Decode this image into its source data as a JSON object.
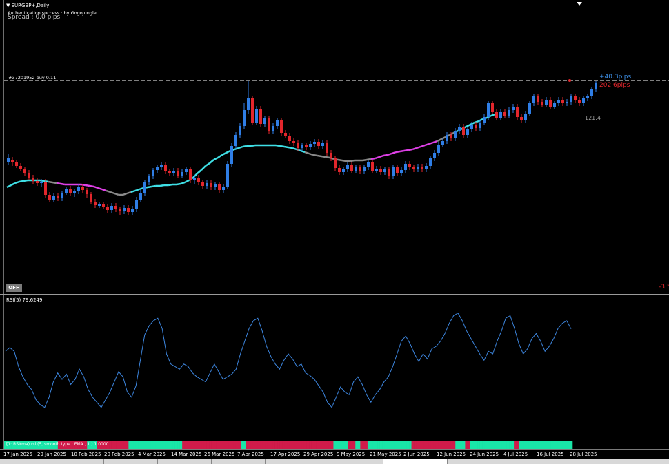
{
  "header": {
    "symbol_title": "▼ EURGBP+,Daily",
    "auth_text": "Authentication success : by GogoJungle",
    "spread_text": "Spread : 0.0 pips"
  },
  "order": {
    "label": "#37201952 buy 0.11",
    "pips_blue": "+40.3pips",
    "pips_red": "202.6pips"
  },
  "ma_value": "121.4",
  "off_button": "OFF",
  "right_edge_value": "-3.5",
  "rsi": {
    "label": "RSI(5) 79.6249"
  },
  "bar_indicator": {
    "label": "[1: RSI(ma) rsi (5, smooth type : EMA , 1 ) 1.0000"
  },
  "date_axis": [
    "17 Jan 2025",
    "29 Jan 2025",
    "10 Feb 2025",
    "20 Feb 2025",
    "4 Mar 2025",
    "14 Mar 2025",
    "26 Mar 2025",
    "7 Apr 2025",
    "17 Apr 2025",
    "29 Apr 2025",
    "9 May 2025",
    "21 May 2025",
    "2 Jun 2025",
    "12 Jun 2025",
    "24 Jun 2025",
    "4 Jul 2025",
    "16 Jul 2025",
    "28 Jul 2025"
  ],
  "colors": {
    "bull": "#2f7ee6",
    "bear": "#e3262c",
    "ma_cyan": "#3fe0e6",
    "ma_magenta": "#e040e8",
    "ma_gray": "#8a8a8a",
    "rsi_line": "#3d86df",
    "bar_green": "#19e6a8",
    "bar_red": "#d01b4a"
  },
  "chart_data": {
    "type": "candlestick",
    "candles": [
      [
        235,
        230,
        224,
        240
      ],
      [
        232,
        236,
        228,
        241
      ],
      [
        236,
        241,
        232,
        244
      ],
      [
        241,
        245,
        237,
        249
      ],
      [
        245,
        251,
        242,
        255
      ],
      [
        251,
        258,
        247,
        262
      ],
      [
        258,
        263,
        254,
        268
      ],
      [
        263,
        266,
        259,
        270
      ],
      [
        266,
        264,
        260,
        271
      ],
      [
        264,
        283,
        260,
        287
      ],
      [
        283,
        290,
        279,
        294
      ],
      [
        290,
        285,
        281,
        294
      ],
      [
        285,
        288,
        281,
        292
      ],
      [
        288,
        280,
        277,
        292
      ],
      [
        280,
        274,
        271,
        283
      ],
      [
        274,
        281,
        270,
        285
      ],
      [
        281,
        278,
        274,
        286
      ],
      [
        278,
        272,
        268,
        282
      ],
      [
        272,
        276,
        268,
        280
      ],
      [
        276,
        282,
        273,
        287
      ],
      [
        282,
        293,
        279,
        297
      ],
      [
        293,
        298,
        289,
        302
      ],
      [
        298,
        297,
        293,
        302
      ],
      [
        297,
        300,
        293,
        304
      ],
      [
        300,
        305,
        296,
        310
      ],
      [
        305,
        299,
        295,
        309
      ],
      [
        299,
        304,
        295,
        308
      ],
      [
        304,
        307,
        300,
        312
      ],
      [
        307,
        302,
        298,
        311
      ],
      [
        302,
        308,
        298,
        312
      ],
      [
        308,
        303,
        299,
        312
      ],
      [
        303,
        290,
        286,
        308
      ],
      [
        290,
        280,
        276,
        294
      ],
      [
        280,
        265,
        261,
        284
      ],
      [
        265,
        256,
        253,
        269
      ],
      [
        256,
        247,
        244,
        260
      ],
      [
        247,
        243,
        239,
        252
      ],
      [
        243,
        240,
        236,
        247
      ],
      [
        240,
        249,
        236,
        253
      ],
      [
        249,
        252,
        245,
        256
      ],
      [
        252,
        248,
        244,
        256
      ],
      [
        248,
        255,
        244,
        259
      ],
      [
        255,
        250,
        246,
        259
      ],
      [
        250,
        246,
        242,
        254
      ],
      [
        246,
        262,
        242,
        266
      ],
      [
        262,
        258,
        254,
        267
      ],
      [
        258,
        265,
        254,
        269
      ],
      [
        265,
        270,
        261,
        274
      ],
      [
        270,
        266,
        262,
        274
      ],
      [
        266,
        272,
        262,
        276
      ],
      [
        272,
        268,
        264,
        276
      ],
      [
        268,
        276,
        264,
        281
      ],
      [
        276,
        271,
        267,
        280
      ],
      [
        271,
        238,
        234,
        275
      ],
      [
        238,
        212,
        208,
        242
      ],
      [
        212,
        196,
        192,
        216
      ],
      [
        196,
        183,
        178,
        200
      ],
      [
        183,
        160,
        150,
        187
      ],
      [
        160,
        143,
        118,
        165
      ],
      [
        143,
        178,
        139,
        182
      ],
      [
        178,
        158,
        154,
        182
      ],
      [
        158,
        180,
        154,
        184
      ],
      [
        180,
        172,
        168,
        184
      ],
      [
        172,
        190,
        168,
        194
      ],
      [
        190,
        183,
        179,
        194
      ],
      [
        183,
        175,
        171,
        187
      ],
      [
        175,
        193,
        171,
        197
      ],
      [
        193,
        197,
        189,
        201
      ],
      [
        197,
        205,
        193,
        209
      ],
      [
        205,
        208,
        201,
        212
      ],
      [
        208,
        215,
        204,
        219
      ],
      [
        215,
        211,
        207,
        219
      ],
      [
        211,
        214,
        207,
        218
      ],
      [
        214,
        209,
        205,
        218
      ],
      [
        209,
        206,
        202,
        213
      ],
      [
        206,
        212,
        202,
        216
      ],
      [
        212,
        208,
        204,
        216
      ],
      [
        208,
        222,
        204,
        226
      ],
      [
        222,
        230,
        218,
        234
      ],
      [
        230,
        244,
        226,
        248
      ],
      [
        244,
        250,
        240,
        254
      ],
      [
        250,
        246,
        242,
        254
      ],
      [
        246,
        240,
        236,
        250
      ],
      [
        240,
        248,
        236,
        252
      ],
      [
        248,
        243,
        239,
        252
      ],
      [
        243,
        249,
        239,
        253
      ],
      [
        249,
        243,
        239,
        253
      ],
      [
        243,
        236,
        232,
        247
      ],
      [
        236,
        248,
        232,
        252
      ],
      [
        248,
        245,
        241,
        252
      ],
      [
        245,
        250,
        241,
        254
      ],
      [
        250,
        246,
        242,
        254
      ],
      [
        246,
        256,
        242,
        260
      ],
      [
        256,
        243,
        239,
        260
      ],
      [
        243,
        252,
        239,
        256
      ],
      [
        252,
        247,
        243,
        256
      ],
      [
        247,
        238,
        234,
        251
      ],
      [
        238,
        243,
        234,
        247
      ],
      [
        243,
        246,
        239,
        250
      ],
      [
        246,
        242,
        238,
        250
      ],
      [
        242,
        246,
        238,
        250
      ],
      [
        246,
        241,
        237,
        250
      ],
      [
        241,
        230,
        226,
        245
      ],
      [
        230,
        222,
        218,
        234
      ],
      [
        222,
        210,
        206,
        226
      ],
      [
        210,
        205,
        201,
        214
      ],
      [
        205,
        196,
        192,
        209
      ],
      [
        196,
        201,
        192,
        205
      ],
      [
        201,
        190,
        186,
        205
      ],
      [
        190,
        184,
        180,
        194
      ],
      [
        184,
        196,
        180,
        200
      ],
      [
        196,
        188,
        184,
        200
      ],
      [
        188,
        181,
        177,
        192
      ],
      [
        181,
        186,
        177,
        190
      ],
      [
        186,
        178,
        174,
        190
      ],
      [
        178,
        170,
        166,
        182
      ],
      [
        170,
        150,
        146,
        174
      ],
      [
        150,
        162,
        146,
        166
      ],
      [
        162,
        171,
        158,
        175
      ],
      [
        171,
        163,
        159,
        175
      ],
      [
        163,
        168,
        159,
        172
      ],
      [
        168,
        160,
        156,
        172
      ],
      [
        160,
        155,
        151,
        164
      ],
      [
        155,
        170,
        151,
        174
      ],
      [
        170,
        175,
        166,
        179
      ],
      [
        175,
        165,
        161,
        179
      ],
      [
        165,
        150,
        146,
        169
      ],
      [
        150,
        140,
        136,
        154
      ],
      [
        140,
        148,
        136,
        152
      ],
      [
        148,
        152,
        144,
        156
      ],
      [
        152,
        145,
        141,
        156
      ],
      [
        145,
        155,
        141,
        159
      ],
      [
        155,
        150,
        146,
        159
      ],
      [
        150,
        145,
        141,
        154
      ],
      [
        145,
        150,
        141,
        154
      ],
      [
        150,
        148,
        144,
        154
      ],
      [
        148,
        140,
        136,
        152
      ],
      [
        140,
        145,
        136,
        149
      ],
      [
        145,
        150,
        141,
        154
      ],
      [
        150,
        143,
        139,
        154
      ],
      [
        143,
        140,
        136,
        147
      ],
      [
        140,
        130,
        126,
        144
      ],
      [
        130,
        121,
        117,
        134
      ]
    ],
    "ma": [
      272,
      269,
      266,
      264,
      263,
      262,
      262,
      262,
      262,
      263,
      264,
      265,
      266,
      267,
      268,
      268,
      268,
      268,
      268,
      269,
      270,
      271,
      273,
      275,
      277,
      279,
      281,
      283,
      283,
      281,
      279,
      277,
      275,
      273,
      272,
      271,
      270,
      270,
      269,
      269,
      268,
      268,
      267,
      265,
      262,
      258,
      252,
      247,
      241,
      237,
      232,
      229,
      225,
      222,
      219,
      217,
      215,
      213,
      212,
      212,
      211,
      211,
      211,
      211,
      211,
      211,
      212,
      213,
      214,
      215,
      217,
      219,
      221,
      223,
      225,
      226,
      227,
      228,
      229,
      231,
      232,
      233,
      234,
      234,
      233,
      233,
      233,
      232,
      231,
      230,
      228,
      226,
      225,
      223,
      221,
      220,
      219,
      218,
      217,
      215,
      213,
      211,
      209,
      207,
      205,
      202,
      199,
      196,
      193,
      190,
      187,
      184,
      181,
      178,
      176,
      173,
      171,
      168,
      166
    ],
    "ma_magenta_ranges": [
      [
        12,
        24
      ],
      [
        88,
        104
      ]
    ],
    "rsi": [
      62,
      65,
      62,
      50,
      42,
      36,
      32,
      24,
      20,
      18,
      26,
      38,
      45,
      40,
      44,
      36,
      40,
      48,
      42,
      32,
      26,
      22,
      18,
      24,
      30,
      38,
      46,
      42,
      30,
      26,
      35,
      55,
      75,
      82,
      86,
      88,
      80,
      60,
      52,
      50,
      48,
      52,
      50,
      45,
      42,
      40,
      38,
      45,
      52,
      46,
      40,
      42,
      44,
      48,
      60,
      70,
      80,
      86,
      88,
      78,
      66,
      58,
      52,
      48,
      55,
      60,
      56,
      50,
      52,
      45,
      43,
      40,
      35,
      30,
      22,
      18,
      26,
      34,
      30,
      28,
      38,
      42,
      36,
      28,
      22,
      28,
      32,
      38,
      42,
      50,
      60,
      70,
      74,
      68,
      60,
      54,
      60,
      56,
      64,
      66,
      70,
      76,
      84,
      90,
      92,
      86,
      78,
      72,
      66,
      60,
      55,
      62,
      60,
      70,
      78,
      88,
      90,
      80,
      68,
      60,
      64,
      72,
      76,
      70,
      62,
      66,
      72,
      80,
      84,
      86,
      79.6
    ],
    "rsi_levels": [
      70,
      30
    ],
    "bar_colors": "GGGGGGGGGGGGGGGGGGGGGGRRRRRRRRRRRRGGGGRRRRRRRRRRRRRGGGGGGGGGGGGGGGGGGGGGGRRRRRRRRRRRRRRRRRRRRRRRRGGRRRRRRRRRRRRRRRRRRRRRRRRRRRRRRRRRRRRGGGGGGRRRGGRRRGGGGGGGGGGGGGGGGGGRRRRRRRRRRRRRRRRRRGGGGRRGGGGGGGGGGGGGGGGGGRRGGGGGGGGGGGGGGGGGGGGGG"
  }
}
